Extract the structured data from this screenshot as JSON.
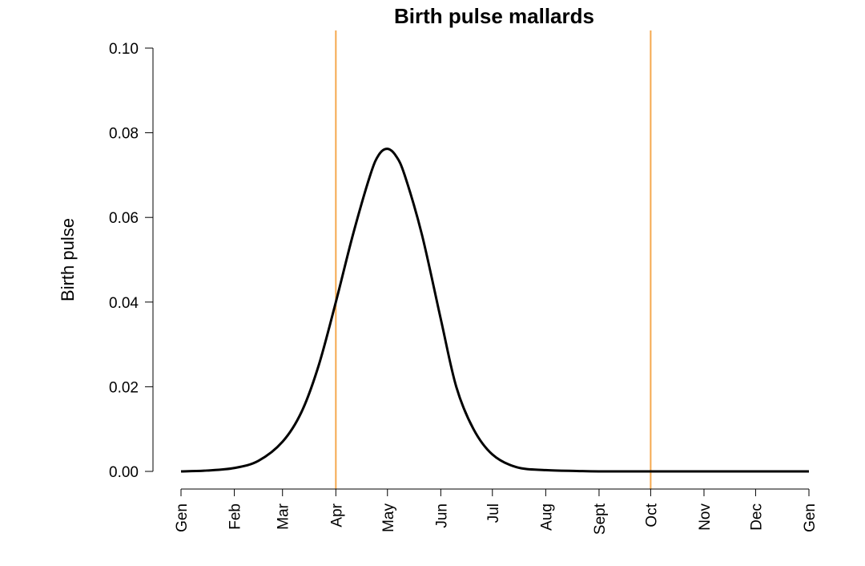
{
  "chart_data": {
    "type": "line",
    "title": "Birth pulse mallards",
    "xlabel": "",
    "ylabel": "Birth pulse",
    "x_ticks": [
      {
        "label": "Gen",
        "day": 0
      },
      {
        "label": "Feb",
        "day": 31
      },
      {
        "label": "Mar",
        "day": 59
      },
      {
        "label": "Apr",
        "day": 90
      },
      {
        "label": "May",
        "day": 120
      },
      {
        "label": "Jun",
        "day": 151
      },
      {
        "label": "Jul",
        "day": 181
      },
      {
        "label": "Aug",
        "day": 212
      },
      {
        "label": "Sept",
        "day": 243
      },
      {
        "label": "Oct",
        "day": 273
      },
      {
        "label": "Nov",
        "day": 304
      },
      {
        "label": "Dec",
        "day": 334
      },
      {
        "label": "Gen",
        "day": 365
      }
    ],
    "xlim": [
      0,
      365
    ],
    "y_ticks": [
      0.0,
      0.02,
      0.04,
      0.06,
      0.08,
      0.1
    ],
    "y_tick_labels": [
      "0.00",
      "0.02",
      "0.04",
      "0.06",
      "0.08",
      "0.10"
    ],
    "ylim": [
      0,
      0.1
    ],
    "series": [
      {
        "color": "#000000",
        "x": [
          0,
          15,
          31,
          45,
          59,
          70,
          80,
          90,
          100,
          110,
          115,
          120,
          125,
          130,
          140,
          151,
          160,
          170,
          181,
          195,
          212,
          230,
          243,
          273,
          304,
          334,
          365
        ],
        "y": [
          0.0,
          0.0002,
          0.0008,
          0.0025,
          0.007,
          0.014,
          0.025,
          0.04,
          0.056,
          0.07,
          0.0748,
          0.0762,
          0.0745,
          0.07,
          0.056,
          0.036,
          0.02,
          0.01,
          0.004,
          0.001,
          0.0003,
          0.0001,
          0.0,
          0.0,
          0.0,
          0.0,
          0.0
        ]
      }
    ],
    "vertical_lines": [
      {
        "day": 90,
        "color": "#f5a94f"
      },
      {
        "day": 273,
        "color": "#f5a94f"
      }
    ],
    "grid": false,
    "legend": "none"
  }
}
